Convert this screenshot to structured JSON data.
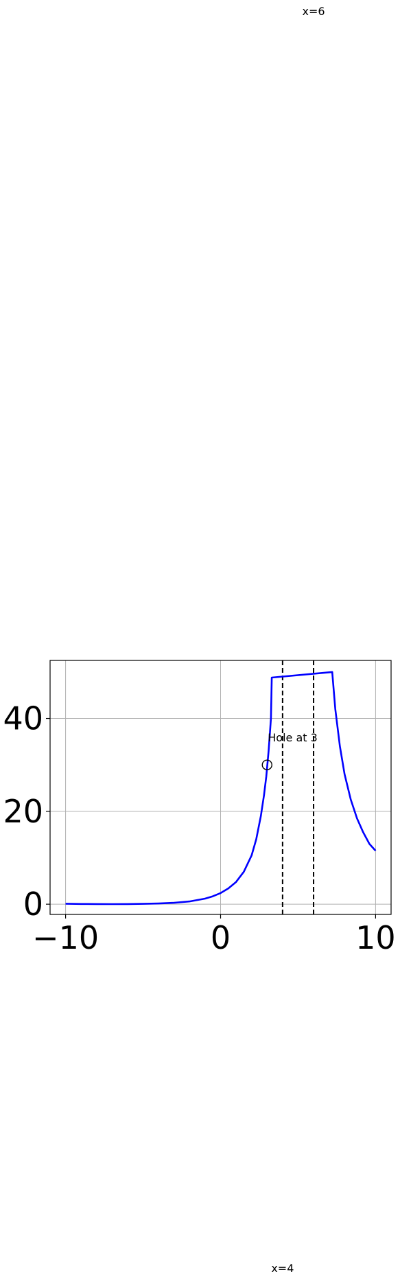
{
  "chart_data": {
    "type": "line",
    "title": "",
    "xlabel": "",
    "ylabel": "",
    "xlim": [
      -11,
      11
    ],
    "ylim": [
      -2.2,
      52.5
    ],
    "grid": true,
    "legend": "none",
    "xticks": [
      -10,
      0,
      10
    ],
    "xtick_labels": [
      "−10",
      "0",
      "10"
    ],
    "yticks": [
      0,
      20,
      40
    ],
    "ytick_labels": [
      "0",
      "20",
      "40"
    ],
    "series": [
      {
        "color": "#0000ff",
        "x": [
          -10,
          -9,
          -8,
          -7,
          -6,
          -5,
          -4,
          -3,
          -2,
          -1,
          -0.5,
          0,
          0.5,
          1,
          1.5,
          2,
          2.3,
          2.6,
          2.8,
          2.95,
          3.1,
          3.25,
          3.3,
          7.2,
          7.4,
          7.7,
          8,
          8.4,
          8.8,
          9.2,
          9.6,
          10
        ],
        "y": [
          0.1,
          0.05,
          0.03,
          0.02,
          0.03,
          0.07,
          0.15,
          0.3,
          0.6,
          1.2,
          1.7,
          2.4,
          3.4,
          4.8,
          7.0,
          10.5,
          14.0,
          19.0,
          23.5,
          27.5,
          33.0,
          40.0,
          48.8,
          50.0,
          42.0,
          34.0,
          28.0,
          22.5,
          18.5,
          15.5,
          13.0,
          11.5
        ]
      }
    ],
    "asymptotes": [
      4,
      6
    ],
    "asymptote_labels": [
      "x=4",
      "x=6"
    ],
    "hole": {
      "x": 3,
      "y": 30,
      "label": "Hole at 3"
    }
  }
}
